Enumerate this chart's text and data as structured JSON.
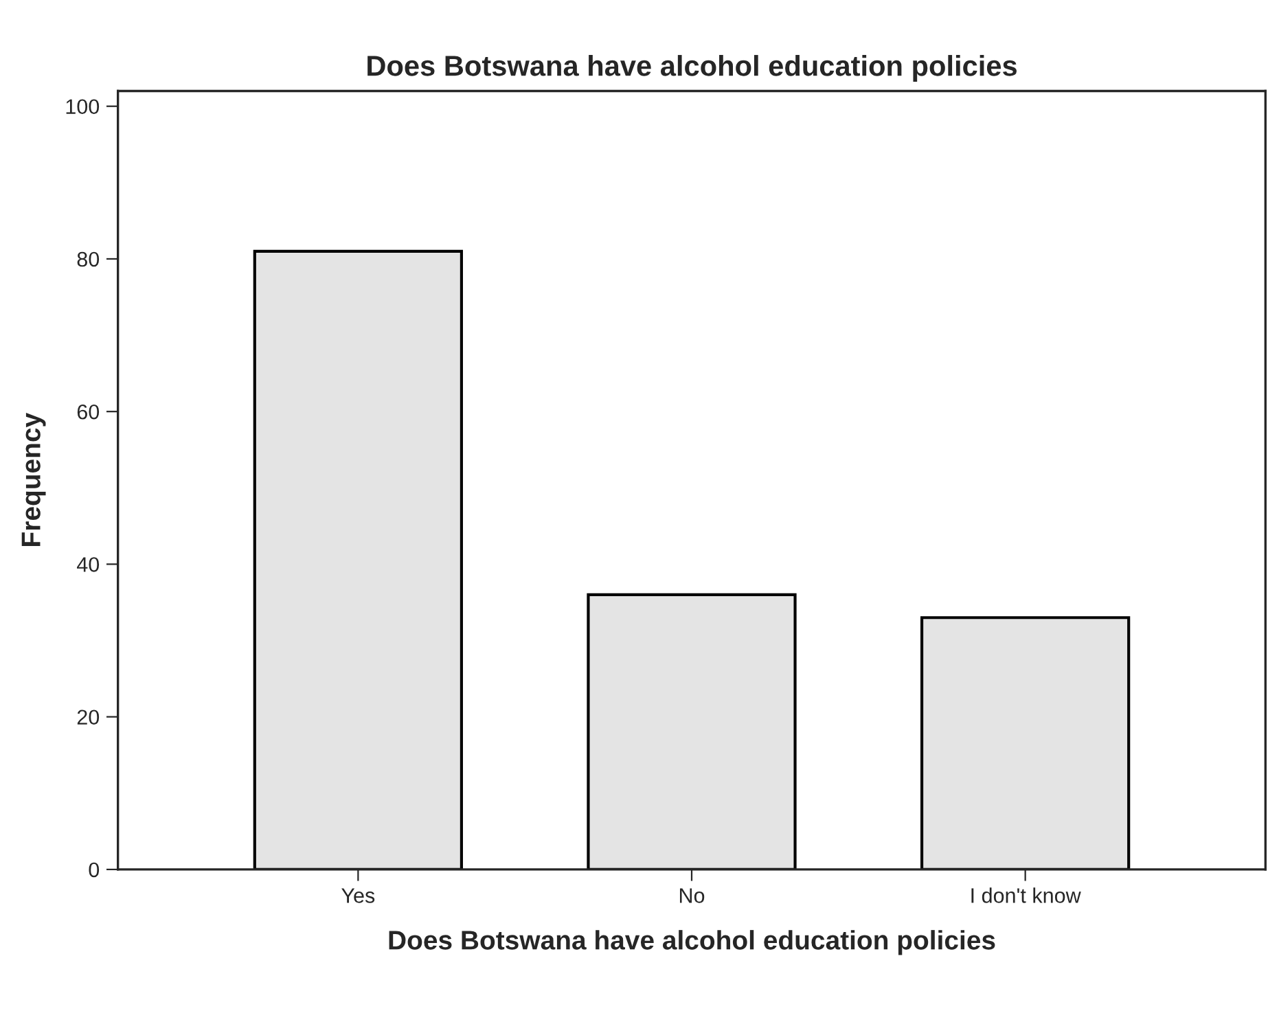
{
  "chart_data": {
    "type": "bar",
    "title": "Does Botswana have alcohol education policies",
    "xlabel": "Does Botswana have alcohol education policies",
    "ylabel": "Frequency",
    "categories": [
      "Yes",
      "No",
      "I don't know"
    ],
    "values": [
      81,
      36,
      33
    ],
    "color": "#e4e4e4",
    "ylim": [
      0,
      102
    ],
    "yticks": [
      0,
      20,
      40,
      60,
      80,
      100
    ],
    "grid": false
  }
}
